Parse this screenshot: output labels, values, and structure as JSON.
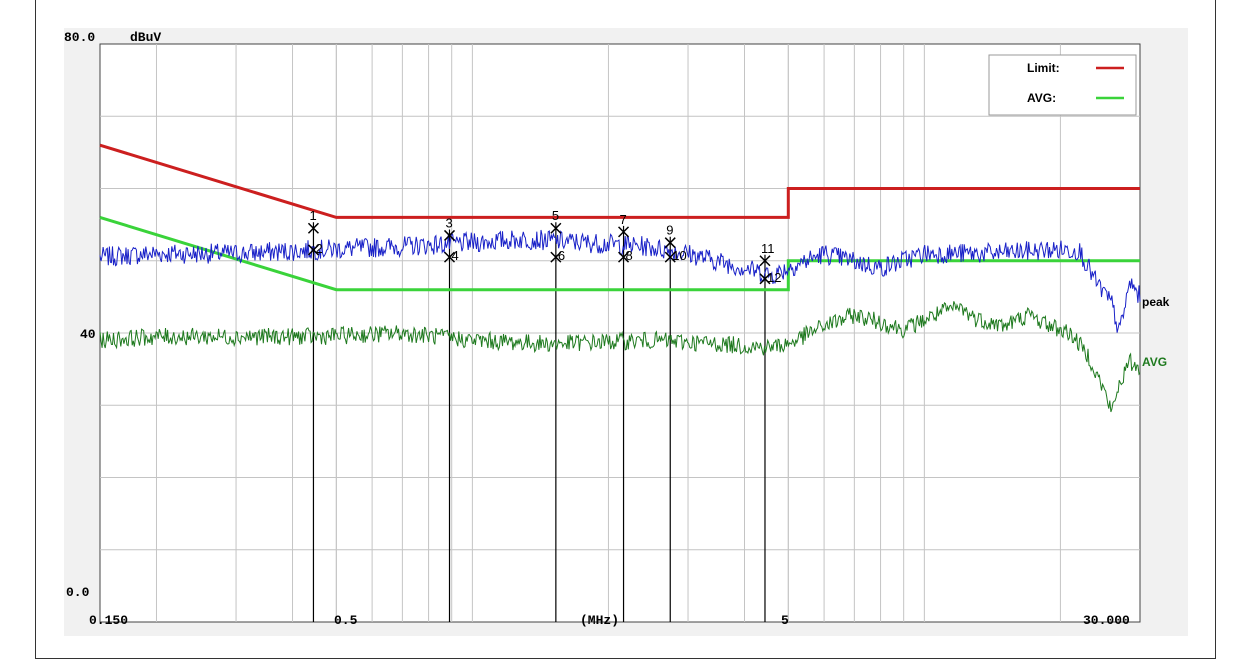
{
  "chart_data": {
    "type": "line",
    "ylabel": "dBuV",
    "xlabel": "(MHz)",
    "xscale": "log",
    "xlim": [
      0.15,
      30.0
    ],
    "ylim": [
      0,
      80
    ],
    "y_tick_labels": [
      {
        "value": 80,
        "label": "80.0"
      },
      {
        "value": 40,
        "label": "40"
      },
      {
        "value": 0,
        "label": "0.0"
      }
    ],
    "x_tick_labels": [
      {
        "value": 0.15,
        "label": "0.150"
      },
      {
        "value": 0.5,
        "label": "0.5"
      },
      {
        "value": 1.6,
        "label": "(MHz)"
      },
      {
        "value": 5,
        "label": "5"
      },
      {
        "value": 30,
        "label": "30.000"
      }
    ],
    "grid": true,
    "legend": {
      "placement": "top-right",
      "entries": [
        {
          "name": "Limit:",
          "color": "#cc1f1f"
        },
        {
          "name": "AVG:",
          "color": "#3ad33a"
        }
      ]
    },
    "series": [
      {
        "name": "Limit:",
        "color": "#cc1f1f",
        "points": [
          [
            0.15,
            66
          ],
          [
            0.5,
            56
          ],
          [
            5,
            56
          ],
          [
            5,
            60
          ],
          [
            30,
            60
          ]
        ]
      },
      {
        "name": "AVG:",
        "color": "#3ad33a",
        "points": [
          [
            0.15,
            56
          ],
          [
            0.5,
            46
          ],
          [
            5,
            46
          ],
          [
            5,
            50
          ],
          [
            30,
            50
          ]
        ]
      },
      {
        "name": "peak",
        "color": "#1a22c8",
        "points": [
          [
            0.15,
            50.5
          ],
          [
            0.2,
            51
          ],
          [
            0.3,
            51
          ],
          [
            0.45,
            51.5
          ],
          [
            0.7,
            52
          ],
          [
            1,
            52.5
          ],
          [
            1.3,
            53
          ],
          [
            1.8,
            52.5
          ],
          [
            2.4,
            52
          ],
          [
            3,
            51
          ],
          [
            4,
            49
          ],
          [
            4.6,
            48
          ],
          [
            5,
            49
          ],
          [
            6,
            51
          ],
          [
            8,
            49
          ],
          [
            10,
            51
          ],
          [
            14,
            51
          ],
          [
            19,
            51.5
          ],
          [
            22,
            51.5
          ],
          [
            24,
            47
          ],
          [
            26,
            44
          ],
          [
            27,
            40
          ],
          [
            28.5,
            47
          ],
          [
            30,
            45
          ]
        ]
      },
      {
        "name": "AVG",
        "color": "#1f7a1f",
        "points": [
          [
            0.15,
            39
          ],
          [
            0.2,
            39.5
          ],
          [
            0.3,
            39.5
          ],
          [
            0.45,
            39.5
          ],
          [
            0.7,
            40
          ],
          [
            1,
            39
          ],
          [
            1.5,
            38.5
          ],
          [
            2.5,
            39
          ],
          [
            3.5,
            38.5
          ],
          [
            4.5,
            38
          ],
          [
            5,
            38.5
          ],
          [
            6,
            41
          ],
          [
            7,
            42.5
          ],
          [
            8,
            41.5
          ],
          [
            9,
            40.5
          ],
          [
            11,
            43
          ],
          [
            12,
            43.5
          ],
          [
            13,
            42
          ],
          [
            15,
            41
          ],
          [
            17,
            42.5
          ],
          [
            19,
            41
          ],
          [
            21,
            40
          ],
          [
            23,
            37
          ],
          [
            25,
            32
          ],
          [
            26,
            29
          ],
          [
            27,
            33
          ],
          [
            28.5,
            36
          ],
          [
            30,
            35
          ]
        ]
      }
    ],
    "markers": [
      {
        "label": "1",
        "x": 0.445,
        "y": 54.5
      },
      {
        "label": "2",
        "x": 0.445,
        "y": 51.5
      },
      {
        "label": "3",
        "x": 0.89,
        "y": 53.5
      },
      {
        "label": "4",
        "x": 0.89,
        "y": 50.5
      },
      {
        "label": "5",
        "x": 1.53,
        "y": 54.5
      },
      {
        "label": "6",
        "x": 1.53,
        "y": 50.5
      },
      {
        "label": "7",
        "x": 2.16,
        "y": 54
      },
      {
        "label": "8",
        "x": 2.16,
        "y": 50.5
      },
      {
        "label": "9",
        "x": 2.74,
        "y": 52.5
      },
      {
        "label": "10",
        "x": 2.74,
        "y": 50.5
      },
      {
        "label": "11",
        "x": 4.44,
        "y": 50
      },
      {
        "label": "12",
        "x": 4.44,
        "y": 47.5
      }
    ],
    "trace_labels": [
      {
        "text": "peak",
        "color": "#000000"
      },
      {
        "text": "AVG",
        "color": "#1f7a1f"
      }
    ]
  }
}
